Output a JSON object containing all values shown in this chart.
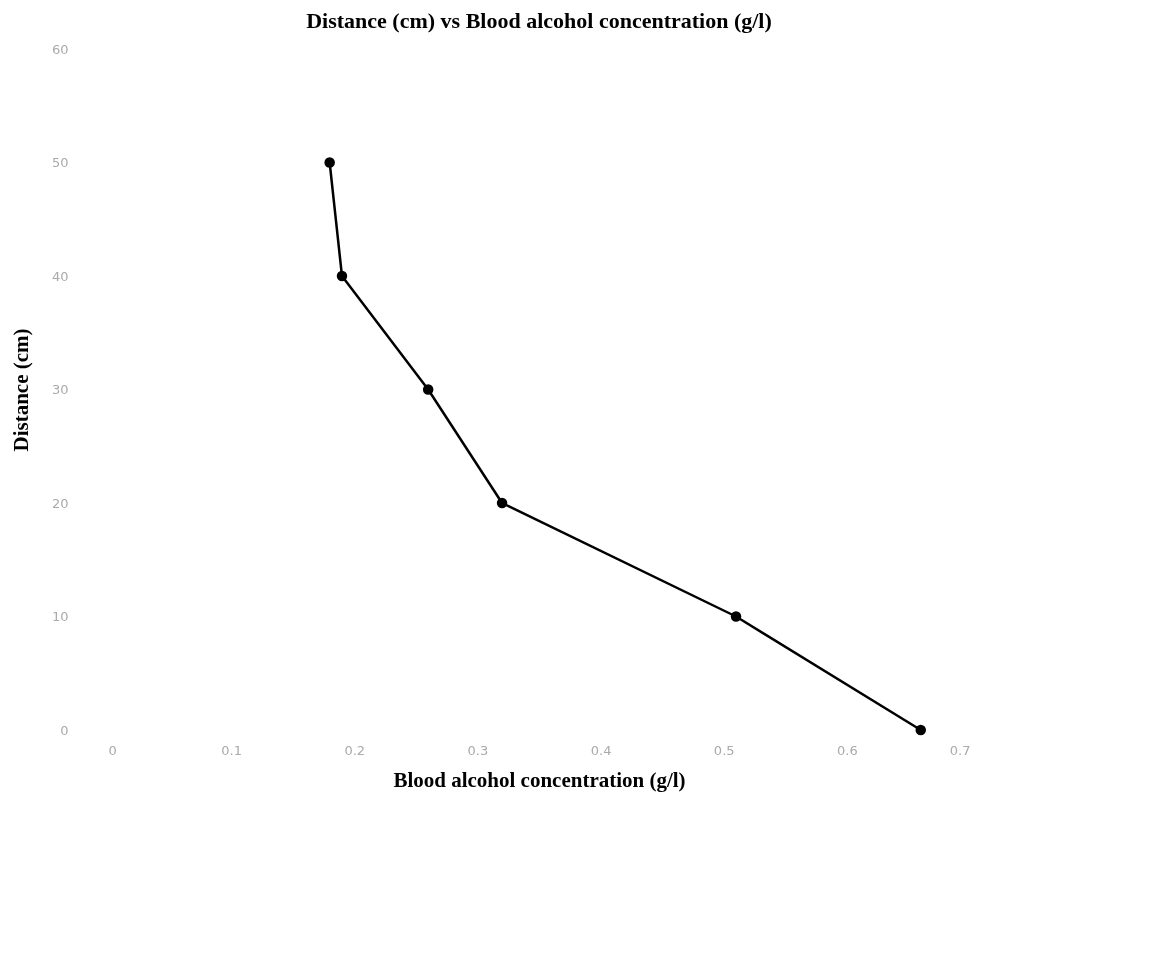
{
  "chart_data": {
    "type": "line",
    "title": "Distance (cm) vs Blood alcohol concentration (g/l)",
    "xlabel": "Blood alcohol concentration (g/l)",
    "ylabel": "Distance (cm)",
    "x": [
      0.18,
      0.19,
      0.26,
      0.32,
      0.51,
      0.66
    ],
    "series": [
      {
        "color": "#000000",
        "values": [
          50,
          40,
          30,
          20,
          10,
          0
        ]
      }
    ],
    "xlim": [
      0,
      0.7
    ],
    "xticks": [
      0,
      0.1,
      0.2,
      0.3,
      0.4,
      0.5,
      0.6,
      0.7
    ],
    "ylim": [
      0,
      60
    ],
    "yticks": [
      0,
      10,
      20,
      30,
      40,
      50,
      60
    ],
    "marker": "circle",
    "line_style": "solid"
  }
}
